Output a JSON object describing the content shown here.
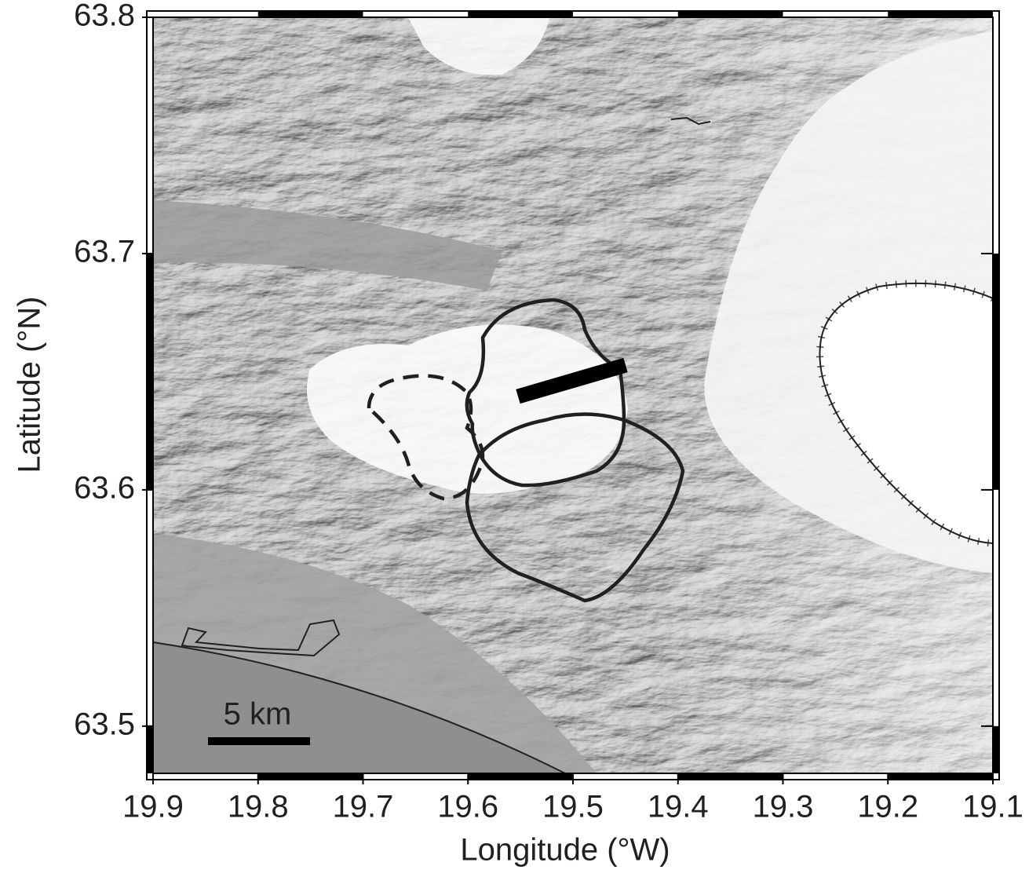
{
  "map": {
    "xlabel": "Longitude (°W)",
    "ylabel": "Latitude (°N)",
    "xlim": [
      19.9,
      19.1
    ],
    "ylim": [
      63.48,
      63.8
    ],
    "xticks": [
      19.9,
      19.8,
      19.7,
      19.6,
      19.5,
      19.4,
      19.3,
      19.2,
      19.1
    ],
    "yticks": [
      63.5,
      63.6,
      63.7,
      63.8
    ],
    "scale_bar_label": "5 km"
  }
}
